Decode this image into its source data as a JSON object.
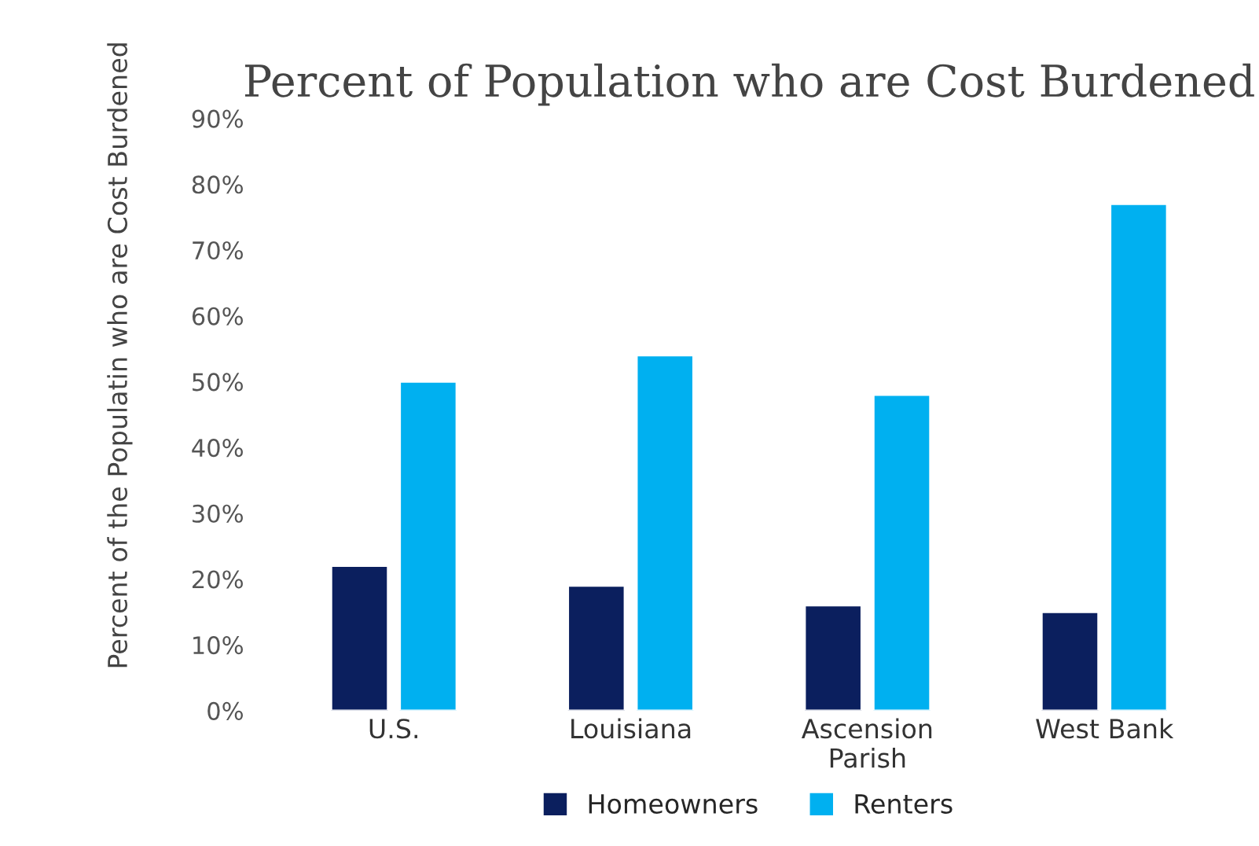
{
  "chart_data": {
    "type": "bar",
    "title": "Percent of Population who are Cost Burdened",
    "ylabel": "Percent of the Populatin who are Cost Burdened",
    "categories": [
      "U.S.",
      "Louisiana",
      "Ascension\nParish",
      "West Bank"
    ],
    "series": [
      {
        "name": "Homeowners",
        "color": "#0b1f5e",
        "values": [
          22,
          19,
          16,
          15
        ]
      },
      {
        "name": "Renters",
        "color": "#00b0f0",
        "values": [
          50,
          54,
          48,
          77
        ]
      }
    ],
    "ylim": [
      0,
      90
    ],
    "yticks": [
      {
        "value": 0,
        "label": "0%"
      },
      {
        "value": 10,
        "label": "10%"
      },
      {
        "value": 20,
        "label": "20%"
      },
      {
        "value": 30,
        "label": "30%"
      },
      {
        "value": 40,
        "label": "40%"
      },
      {
        "value": 50,
        "label": "50%"
      },
      {
        "value": 60,
        "label": "60%"
      },
      {
        "value": 70,
        "label": "70%"
      },
      {
        "value": 80,
        "label": "80%"
      },
      {
        "value": 90,
        "label": "90%"
      }
    ],
    "grid": false,
    "legend": "bottom"
  }
}
